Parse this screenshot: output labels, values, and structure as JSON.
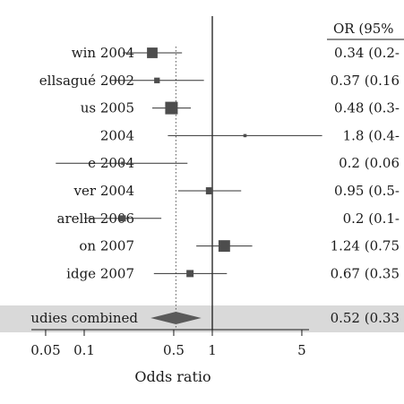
{
  "chart_data": {
    "type": "forest",
    "xlabel": "Odds ratio",
    "scale": "log",
    "xlim": [
      0.03,
      10
    ],
    "xticks": [
      {
        "value": 0.05,
        "label": "0.05"
      },
      {
        "value": 0.1,
        "label": "0.1"
      },
      {
        "value": 0.5,
        "label": "0.5"
      },
      {
        "value": 1,
        "label": "1"
      },
      {
        "value": 5,
        "label": "5"
      }
    ],
    "null_line": 1,
    "pooled_reference_line": 0.52,
    "header": "OR (95%",
    "studies": [
      {
        "label": "win 2004",
        "or": 0.34,
        "lo": 0.2,
        "hi": 0.58,
        "weight": 0.8,
        "or_text": "0.34 (0.2-"
      },
      {
        "label": "ellsagué 2002",
        "or": 0.37,
        "lo": 0.16,
        "hi": 0.86,
        "weight": 0.3,
        "or_text": "0.37 (0.16"
      },
      {
        "label": "us 2005",
        "or": 0.48,
        "lo": 0.34,
        "hi": 0.68,
        "weight": 1.0,
        "or_text": "0.48 (0.3-"
      },
      {
        "label": " 2004",
        "or": 1.8,
        "lo": 0.45,
        "hi": 7.2,
        "weight": 0.05,
        "or_text": "1.8 (0.4-"
      },
      {
        "label": "e 2004",
        "or": 0.2,
        "lo": 0.06,
        "hi": 0.64,
        "weight": 0.05,
        "or_text": "0.2 (0.06"
      },
      {
        "label": "ver 2004",
        "or": 0.95,
        "lo": 0.54,
        "hi": 1.68,
        "weight": 0.45,
        "or_text": "0.95 (0.5-"
      },
      {
        "label": "arella 2006",
        "or": 0.2,
        "lo": 0.1,
        "hi": 0.4,
        "weight": 0.35,
        "or_text": "0.2 (0.1-"
      },
      {
        "label": "on 2007",
        "or": 1.24,
        "lo": 0.75,
        "hi": 2.05,
        "weight": 0.9,
        "or_text": "1.24 (0.75"
      },
      {
        "label": "idge 2007",
        "or": 0.67,
        "lo": 0.35,
        "hi": 1.3,
        "weight": 0.45,
        "or_text": "0.67 (0.35"
      }
    ],
    "combined": {
      "label": "udies combined",
      "or": 0.52,
      "lo": 0.33,
      "hi": 0.82,
      "or_text": "0.52 (0.33"
    }
  }
}
